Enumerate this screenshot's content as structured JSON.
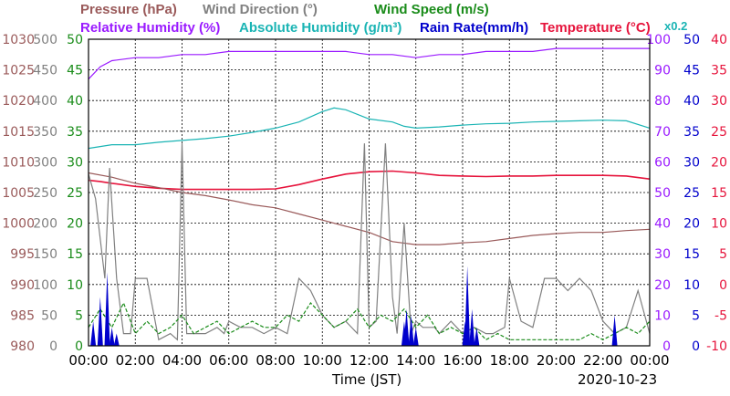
{
  "chart_data": {
    "type": "line",
    "date": "2020-10-23",
    "xlabel": "Time (JST)",
    "xticks": [
      "00:00",
      "02:00",
      "04:00",
      "06:00",
      "08:00",
      "10:00",
      "12:00",
      "14:00",
      "16:00",
      "18:00",
      "20:00",
      "22:00",
      "00:00"
    ],
    "legend": [
      {
        "name": "Pressure (hPa)",
        "color": "#9a5a5a"
      },
      {
        "name": "Wind Direction (°)",
        "color": "#808080"
      },
      {
        "name": "Wind Speed (m/s)",
        "color": "#1a8c1a"
      },
      {
        "name": "Relative Humidity (%)",
        "color": "#9a1aff"
      },
      {
        "name": "Absolute Humidity (g/m³)",
        "color": "#1ab4b4"
      },
      {
        "name": "Rain Rate(mm/h)",
        "color": "#0000cc"
      },
      {
        "name": "Temperature (°C)",
        "color": "#e6143c"
      },
      {
        "name": "x0.2",
        "color": "#1ab4b4"
      }
    ],
    "axes": [
      {
        "name": "pressure",
        "unit": "hPa",
        "range": [
          980,
          1030
        ],
        "ticks": [
          "1030",
          "1025",
          "1020",
          "1015",
          "1010",
          "1005",
          "1000",
          "995",
          "990",
          "985",
          "980"
        ],
        "color": "#9a5a5a"
      },
      {
        "name": "wind_direction",
        "unit": "°",
        "range": [
          0,
          500
        ],
        "ticks": [
          "500",
          "450",
          "400",
          "350",
          "300",
          "250",
          "200",
          "150",
          "100",
          "50",
          "0"
        ],
        "color": "#808080"
      },
      {
        "name": "wind_speed",
        "unit": "m/s",
        "range": [
          0,
          50
        ],
        "ticks": [
          "50",
          "45",
          "40",
          "35",
          "30",
          "25",
          "20",
          "15",
          "10",
          "5",
          "0"
        ],
        "color": "#1a8c1a"
      },
      {
        "name": "relative_humidity",
        "unit": "%",
        "range": [
          0,
          100
        ],
        "ticks": [
          "100",
          "90",
          "80",
          "70",
          "60",
          "50",
          "40",
          "30",
          "20",
          "10",
          "0"
        ],
        "color": "#9a1aff"
      },
      {
        "name": "rain_rate",
        "unit": "mm/h",
        "range": [
          0,
          50
        ],
        "ticks": [
          "50",
          "45",
          "40",
          "35",
          "30",
          "25",
          "20",
          "15",
          "10",
          "5",
          "0"
        ],
        "color": "#0000cc"
      },
      {
        "name": "temperature",
        "unit": "°C",
        "range": [
          -10,
          40
        ],
        "ticks": [
          "40",
          "35",
          "30",
          "25",
          "20",
          "15",
          "10",
          "5",
          "0",
          "-5",
          "-10"
        ],
        "color": "#e6143c"
      }
    ],
    "grid": true,
    "series": [
      {
        "name": "Temperature (°C)",
        "axis": "temperature",
        "color": "#e6143c",
        "x": [
          0,
          0.5,
          1,
          2,
          3,
          4,
          5,
          6,
          7,
          8,
          9,
          10,
          11,
          12,
          13,
          14,
          15,
          16,
          17,
          18,
          19,
          20,
          21,
          22,
          23,
          24
        ],
        "y": [
          17.0,
          16.8,
          16.5,
          16.0,
          15.7,
          15.5,
          15.5,
          15.5,
          15.5,
          15.6,
          16.3,
          17.2,
          18.0,
          18.4,
          18.5,
          18.2,
          17.8,
          17.7,
          17.6,
          17.7,
          17.7,
          17.8,
          17.8,
          17.8,
          17.7,
          17.2
        ]
      },
      {
        "name": "Relative Humidity (%)",
        "axis": "relative_humidity",
        "color": "#9a1aff",
        "x": [
          0,
          0.5,
          1,
          2,
          3,
          4,
          5,
          6,
          7,
          8,
          9,
          10,
          11,
          12,
          13,
          14,
          15,
          16,
          17,
          18,
          19,
          20,
          21,
          22,
          23,
          24
        ],
        "y": [
          87,
          91,
          93,
          94,
          94,
          95,
          95,
          96,
          96,
          96,
          96,
          96,
          96,
          95,
          95,
          94,
          95,
          95,
          96,
          96,
          96,
          97,
          97,
          97,
          97,
          97
        ]
      },
      {
        "name": "Absolute Humidity (g/m³)",
        "axis": "wind_speed",
        "scale": "x0.2",
        "color": "#1ab4b4",
        "x": [
          0,
          1,
          2,
          3,
          4,
          5,
          6,
          7,
          8,
          9,
          10,
          10.5,
          11,
          12,
          13,
          13.5,
          14,
          15,
          16,
          17,
          18,
          19,
          20,
          21,
          22,
          23,
          24
        ],
        "y": [
          32.2,
          32.8,
          32.8,
          33.2,
          33.5,
          33.8,
          34.2,
          34.8,
          35.5,
          36.5,
          38.2,
          38.8,
          38.5,
          37.0,
          36.5,
          35.8,
          35.5,
          35.7,
          36.0,
          36.2,
          36.3,
          36.5,
          36.6,
          36.7,
          36.8,
          36.7,
          35.5
        ]
      },
      {
        "name": "Pressure (hPa)",
        "axis": "pressure",
        "color": "#9a5a5a",
        "x": [
          0,
          1,
          2,
          3,
          4,
          5,
          6,
          7,
          8,
          9,
          10,
          11,
          12,
          13,
          14,
          15,
          16,
          17,
          18,
          19,
          20,
          21,
          22,
          23,
          24
        ],
        "y": [
          1008.2,
          1007.5,
          1006.5,
          1005.8,
          1005.0,
          1004.5,
          1003.8,
          1003.0,
          1002.5,
          1001.5,
          1000.5,
          999.5,
          998.5,
          997.0,
          996.5,
          996.5,
          996.8,
          997.0,
          997.5,
          998.0,
          998.3,
          998.5,
          998.5,
          998.8,
          999.0
        ]
      },
      {
        "name": "Wind Direction (°)",
        "axis": "wind_direction",
        "color": "#808080",
        "x": [
          0,
          0.3,
          0.7,
          0.9,
          1.2,
          1.5,
          1.8,
          2,
          2.5,
          3,
          3.5,
          3.8,
          4,
          4.2,
          4.5,
          5,
          5.5,
          5.8,
          6,
          6.5,
          7,
          7.5,
          8,
          8.5,
          9,
          9.5,
          10,
          10.5,
          11,
          11.5,
          11.8,
          12,
          12.3,
          12.7,
          13,
          13.2,
          13.5,
          13.8,
          14,
          14.3,
          14.8,
          15,
          15.5,
          16,
          16.5,
          17,
          17.3,
          17.8,
          18,
          18.5,
          19,
          19.5,
          20,
          20.5,
          21,
          21.5,
          22,
          22.5,
          23,
          23.5,
          24
        ],
        "y": [
          280,
          240,
          110,
          290,
          110,
          20,
          20,
          110,
          110,
          10,
          20,
          10,
          330,
          20,
          20,
          20,
          30,
          20,
          40,
          30,
          30,
          20,
          30,
          20,
          110,
          90,
          50,
          30,
          40,
          20,
          330,
          30,
          40,
          330,
          80,
          20,
          200,
          20,
          40,
          30,
          30,
          20,
          40,
          20,
          30,
          20,
          20,
          30,
          110,
          40,
          30,
          110,
          110,
          90,
          110,
          90,
          40,
          20,
          30,
          90,
          20
        ]
      },
      {
        "name": "Wind Speed (m/s)",
        "axis": "wind_speed",
        "color": "#1a8c1a",
        "x": [
          0,
          0.5,
          1,
          1.5,
          2,
          2.5,
          3,
          3.5,
          4,
          4.5,
          5,
          5.5,
          6,
          6.5,
          7,
          7.5,
          8,
          8.5,
          9,
          9.5,
          10,
          10.5,
          11,
          11.5,
          12,
          12.5,
          13,
          13.5,
          14,
          14.5,
          15,
          15.5,
          16,
          16.5,
          17,
          17.5,
          18,
          18.5,
          19,
          19.5,
          20,
          20.5,
          21,
          21.5,
          22,
          22.5,
          23,
          23.5,
          24
        ],
        "y": [
          3,
          6,
          3,
          7,
          2,
          4,
          2,
          3,
          5,
          2,
          3,
          4,
          2,
          3,
          4,
          3,
          3,
          5,
          4,
          7,
          5,
          3,
          4,
          6,
          3,
          5,
          4,
          6,
          3,
          5,
          2,
          3,
          2,
          3,
          1,
          2,
          1,
          1,
          1,
          1,
          1,
          1,
          1,
          2,
          1,
          2,
          3,
          2,
          4
        ]
      },
      {
        "name": "Rain Rate(mm/h)",
        "axis": "rain_rate",
        "color": "#0000cc",
        "x": [
          0.2,
          0.5,
          0.8,
          1.0,
          1.2,
          13.5,
          13.6,
          13.8,
          14.0,
          16.1,
          16.2,
          16.4,
          16.6,
          22.5
        ],
        "y": [
          4,
          8,
          12,
          3,
          2,
          4,
          6,
          5,
          3,
          4,
          13,
          6,
          3,
          5
        ]
      }
    ]
  }
}
